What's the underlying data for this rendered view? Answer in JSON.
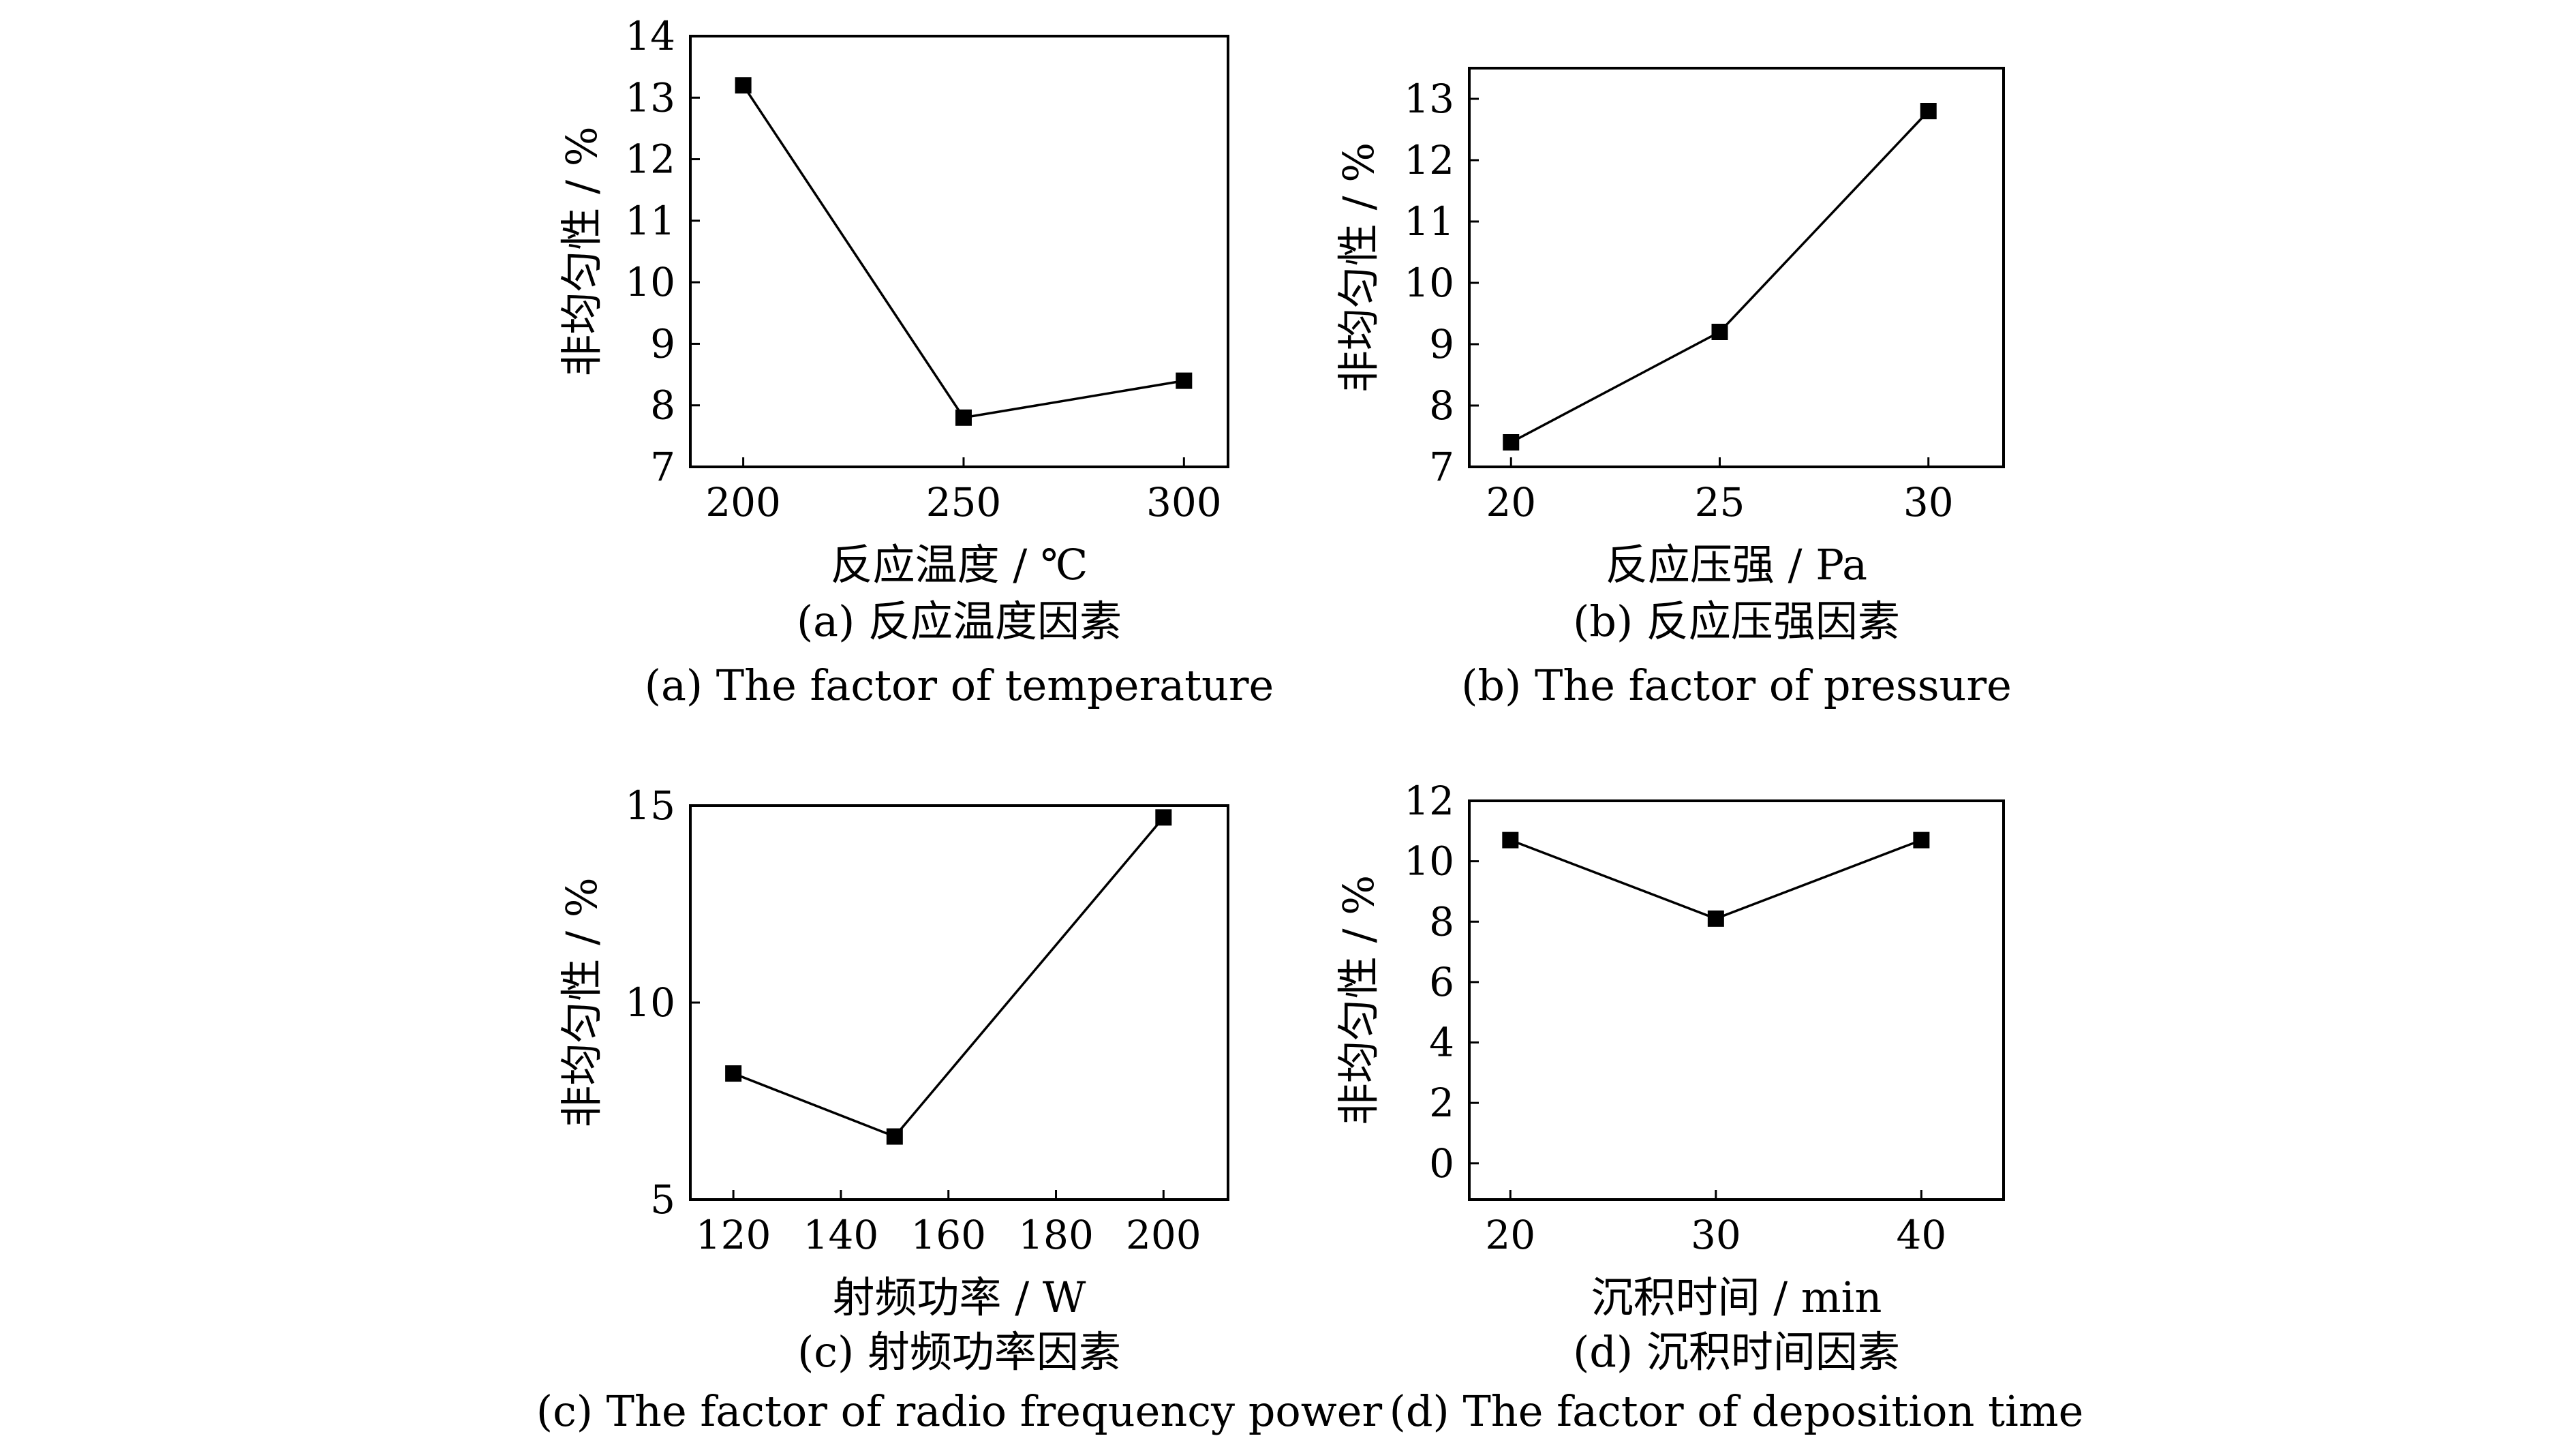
{
  "chart_data": [
    {
      "id": "a",
      "type": "line",
      "x": [
        200,
        250,
        300
      ],
      "values": [
        13.2,
        7.8,
        8.4
      ],
      "xlim": [
        188,
        310
      ],
      "ylim": [
        7,
        14
      ],
      "xticks": [
        200,
        250,
        300
      ],
      "yticks": [
        7,
        8,
        9,
        10,
        11,
        12,
        13,
        14
      ],
      "xlabel": "反应温度 / ℃",
      "ylabel": "非均匀性 / %",
      "caption_cn": "(a) 反应温度因素",
      "caption_en": "(a) The factor of temperature",
      "marker": "square",
      "grid": false
    },
    {
      "id": "b",
      "type": "line",
      "x": [
        20,
        25,
        30
      ],
      "values": [
        7.4,
        9.2,
        12.8
      ],
      "xlim": [
        19,
        31.8
      ],
      "ylim": [
        7,
        13.5
      ],
      "xticks": [
        20,
        25,
        30
      ],
      "yticks": [
        7,
        8,
        9,
        10,
        11,
        12,
        13
      ],
      "xlabel": "反应压强 / Pa",
      "ylabel": "非均匀性 / %",
      "caption_cn": "(b) 反应压强因素",
      "caption_en": "(b) The factor of pressure",
      "marker": "square",
      "grid": false
    },
    {
      "id": "c",
      "type": "line",
      "x": [
        120,
        150,
        200
      ],
      "values": [
        8.2,
        6.6,
        14.7
      ],
      "xlim": [
        112,
        212
      ],
      "ylim": [
        5,
        15
      ],
      "xticks": [
        120,
        140,
        160,
        180,
        200
      ],
      "yticks": [
        5,
        10,
        15
      ],
      "xlabel": "射频功率 / W",
      "ylabel": "非均匀性 / %",
      "caption_cn": "(c) 射频功率因素",
      "caption_en": "(c) The factor of radio frequency power",
      "marker": "square",
      "grid": false
    },
    {
      "id": "d",
      "type": "line",
      "x": [
        20,
        30,
        40
      ],
      "values": [
        10.7,
        8.1,
        10.7
      ],
      "xlim": [
        18,
        44
      ],
      "ylim": [
        -1.2,
        12
      ],
      "xticks": [
        20,
        30,
        40
      ],
      "yticks": [
        0,
        2,
        4,
        6,
        8,
        10,
        12
      ],
      "xlabel": "沉积时间 / min",
      "ylabel": "非均匀性 / %",
      "caption_cn": "(d) 沉积时间因素",
      "caption_en": "(d) The factor of deposition time",
      "marker": "square",
      "grid": false
    }
  ]
}
